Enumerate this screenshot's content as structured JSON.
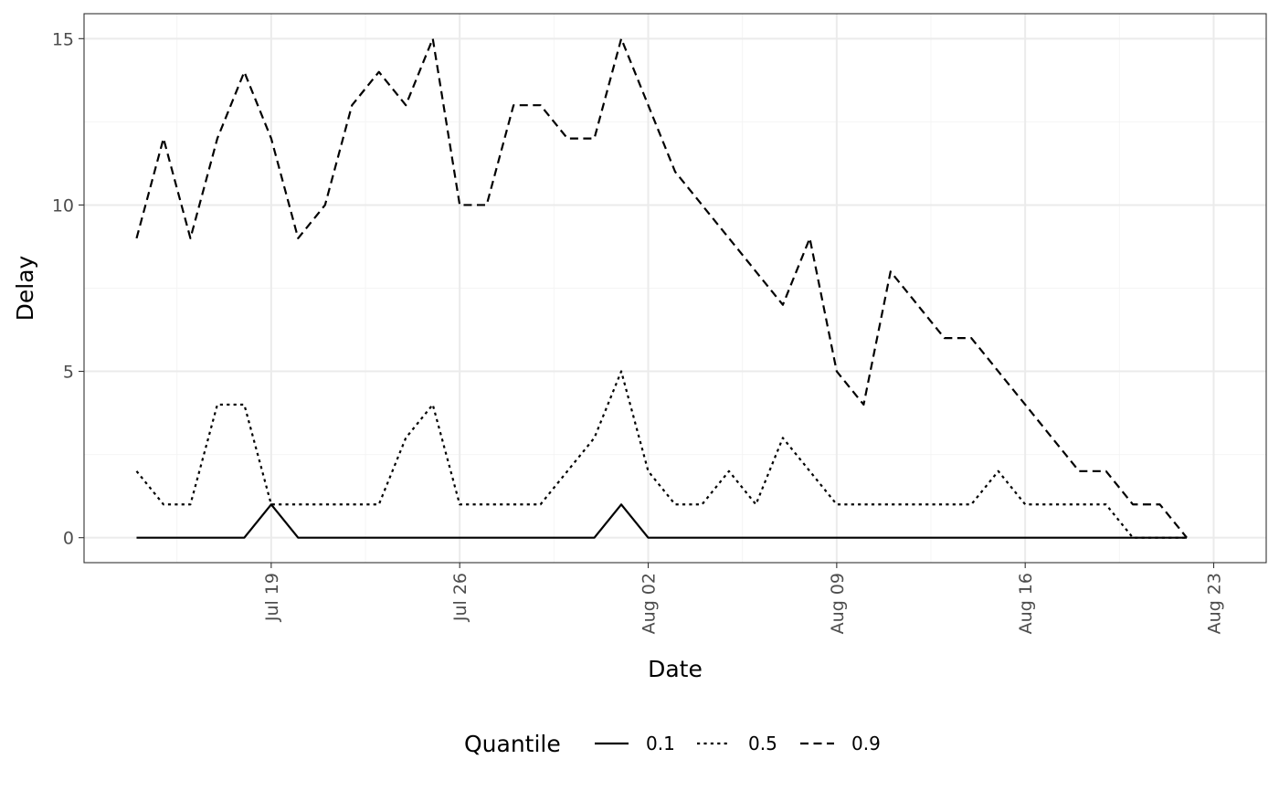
{
  "chart_data": {
    "type": "line",
    "xlabel": "Date",
    "ylabel": "Delay",
    "x_start_label": "Jul 14",
    "x": [
      "Jul 14",
      "Jul 15",
      "Jul 16",
      "Jul 17",
      "Jul 18",
      "Jul 19",
      "Jul 20",
      "Jul 21",
      "Jul 22",
      "Jul 23",
      "Jul 24",
      "Jul 25",
      "Jul 26",
      "Jul 27",
      "Jul 28",
      "Jul 29",
      "Jul 30",
      "Jul 31",
      "Aug 01",
      "Aug 02",
      "Aug 03",
      "Aug 04",
      "Aug 05",
      "Aug 06",
      "Aug 07",
      "Aug 08",
      "Aug 09",
      "Aug 10",
      "Aug 11",
      "Aug 12",
      "Aug 13",
      "Aug 14",
      "Aug 15",
      "Aug 16",
      "Aug 17",
      "Aug 18",
      "Aug 19",
      "Aug 20",
      "Aug 21",
      "Aug 22"
    ],
    "series": [
      {
        "name": "0.1",
        "dash": "solid",
        "values": [
          0,
          0,
          0,
          0,
          0,
          1,
          0,
          0,
          0,
          0,
          0,
          0,
          0,
          0,
          0,
          0,
          0,
          0,
          1,
          0,
          0,
          0,
          0,
          0,
          0,
          0,
          0,
          0,
          0,
          0,
          0,
          0,
          0,
          0,
          0,
          0,
          0,
          0,
          0,
          0
        ]
      },
      {
        "name": "0.5",
        "dash": "dotted",
        "values": [
          2,
          1,
          1,
          4,
          4,
          1,
          1,
          1,
          1,
          1,
          3,
          4,
          1,
          1,
          1,
          1,
          2,
          3,
          5,
          2,
          1,
          1,
          2,
          1,
          3,
          2,
          1,
          1,
          1,
          1,
          1,
          1,
          2,
          1,
          1,
          1,
          1,
          0,
          0,
          0
        ]
      },
      {
        "name": "0.9",
        "dash": "dashed",
        "values": [
          9,
          12,
          9,
          12,
          14,
          12,
          9,
          10,
          13,
          14,
          13,
          15,
          10,
          10,
          13,
          13,
          12,
          12,
          15,
          13,
          11,
          10,
          9,
          8,
          7,
          9,
          5,
          4,
          8,
          7,
          6,
          6,
          5,
          4,
          3,
          2,
          2,
          1,
          1,
          0
        ]
      }
    ],
    "x_ticks": [
      "Jul 19",
      "Jul 26",
      "Aug 02",
      "Aug 09",
      "Aug 16",
      "Aug 23"
    ],
    "x_tick_day_offsets": [
      5,
      12,
      19,
      26,
      33,
      40
    ],
    "x_range_days": [
      -1.95,
      41.95
    ],
    "y_ticks": [
      0,
      5,
      10,
      15
    ],
    "ylim": [
      -0.75,
      15.75
    ],
    "grid": true,
    "legend": {
      "title": "Quantile",
      "placement": "bottom",
      "entries": [
        "0.1",
        "0.5",
        "0.9"
      ]
    },
    "colors": {
      "line": "#000000",
      "grid_major": "#ebebeb",
      "grid_minor": "#f4f4f4",
      "panel_border": "#333333",
      "tick_text": "#4d4d4d"
    }
  }
}
